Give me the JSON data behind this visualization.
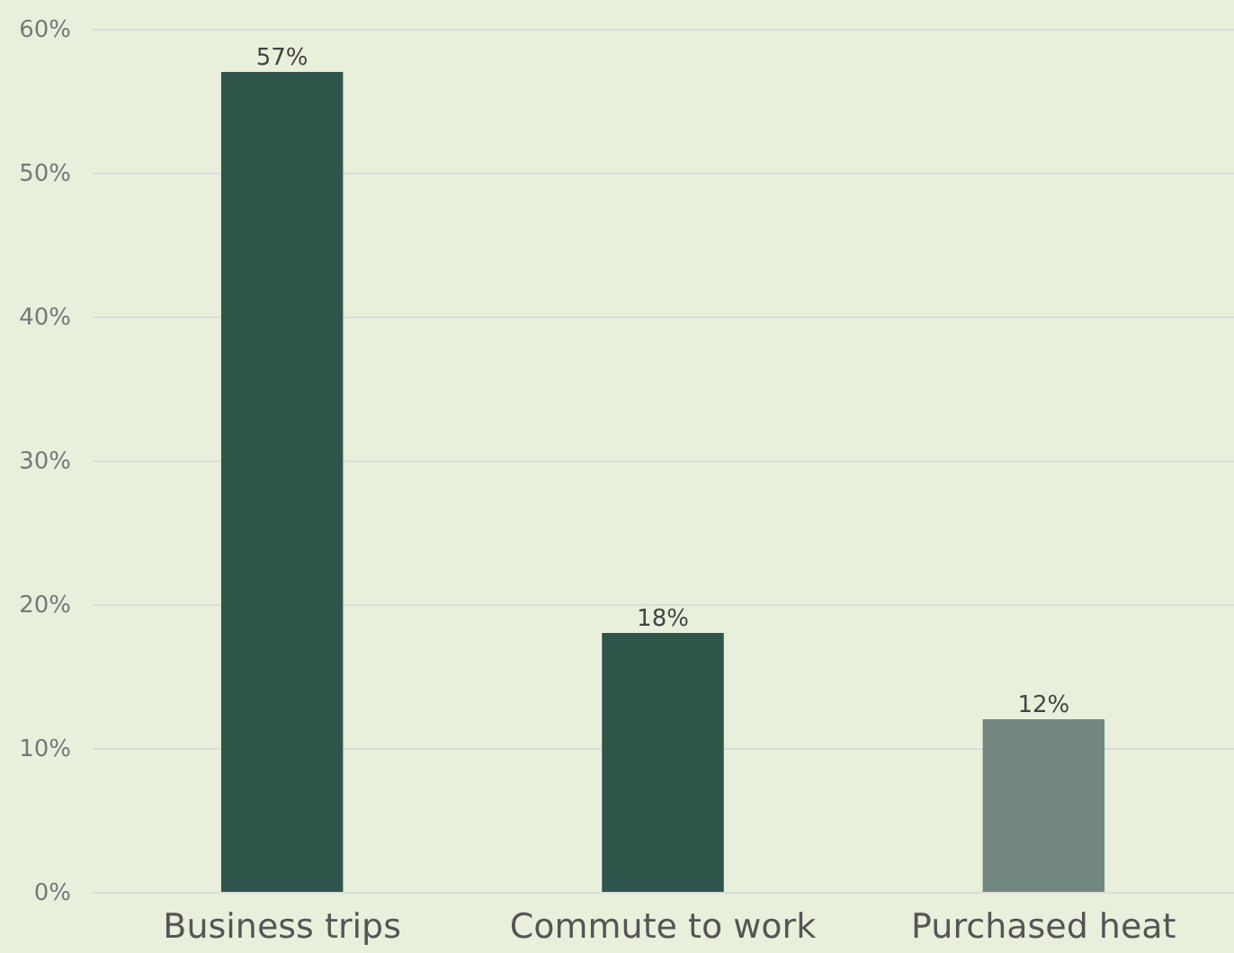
{
  "chart_data": {
    "type": "bar",
    "categories": [
      "Business trips",
      "Commute to work",
      "Purchased heat"
    ],
    "values": [
      57,
      18,
      12
    ],
    "colors": [
      "#2f5449",
      "#2f5449",
      "#71877f"
    ],
    "value_labels": [
      "57%",
      "18%",
      "12%"
    ],
    "ylim": [
      0,
      60
    ],
    "yticks": [
      {
        "value": 0,
        "label": "0%"
      },
      {
        "value": 10,
        "label": "10%"
      },
      {
        "value": 20,
        "label": "20%"
      },
      {
        "value": 30,
        "label": "30%"
      },
      {
        "value": 40,
        "label": "40%"
      },
      {
        "value": 50,
        "label": "50%"
      },
      {
        "value": 60,
        "label": "60%"
      }
    ],
    "grid": "y"
  }
}
